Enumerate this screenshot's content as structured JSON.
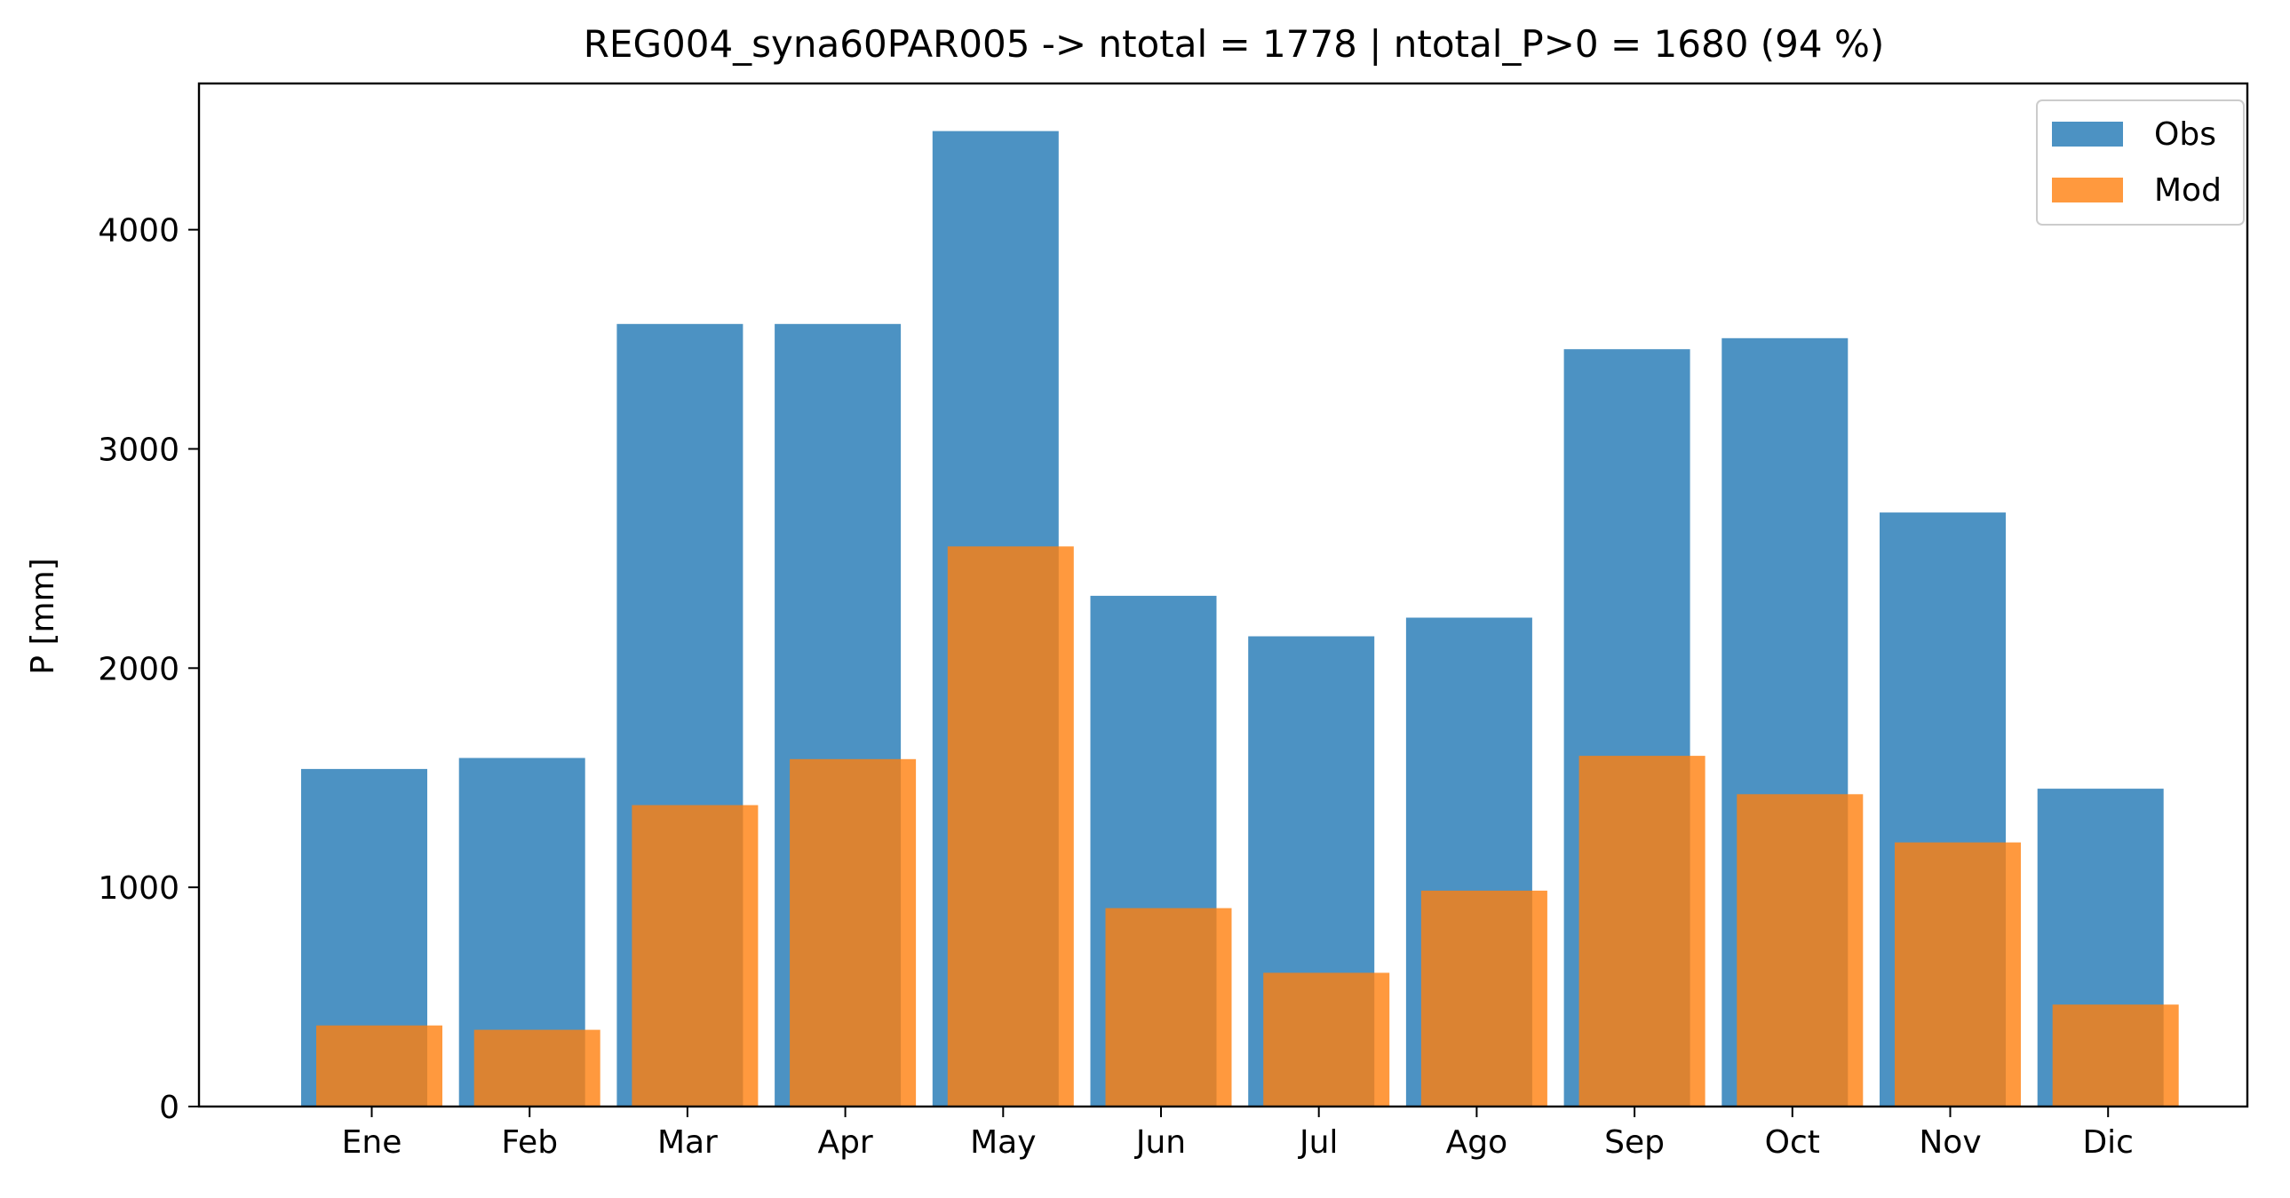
{
  "chart_data": {
    "type": "bar",
    "title": "REG004_syna60PAR005 -> ntotal = 1778 | ntotal_P>0 = 1680 (94 %)",
    "xlabel": "",
    "ylabel": "P [mm]",
    "categories": [
      "Ene",
      "Feb",
      "Mar",
      "Apr",
      "May",
      "Jun",
      "Jul",
      "Ago",
      "Sep",
      "Oct",
      "Nov",
      "Dic"
    ],
    "series": [
      {
        "name": "Obs",
        "color": "#1f77b4",
        "opacity": 0.8,
        "values": [
          1540,
          1590,
          3570,
          3570,
          4450,
          2330,
          2145,
          2230,
          3455,
          3505,
          2710,
          1450
        ]
      },
      {
        "name": "Mod",
        "color": "#ff7f0e",
        "opacity": 0.8,
        "values": [
          370,
          350,
          1375,
          1585,
          2555,
          905,
          610,
          985,
          1600,
          1425,
          1205,
          465
        ]
      }
    ],
    "ylim": [
      0,
      4667
    ],
    "yticks": [
      0,
      1000,
      2000,
      3000,
      4000
    ],
    "grid": false,
    "legend_position": "upper right"
  }
}
